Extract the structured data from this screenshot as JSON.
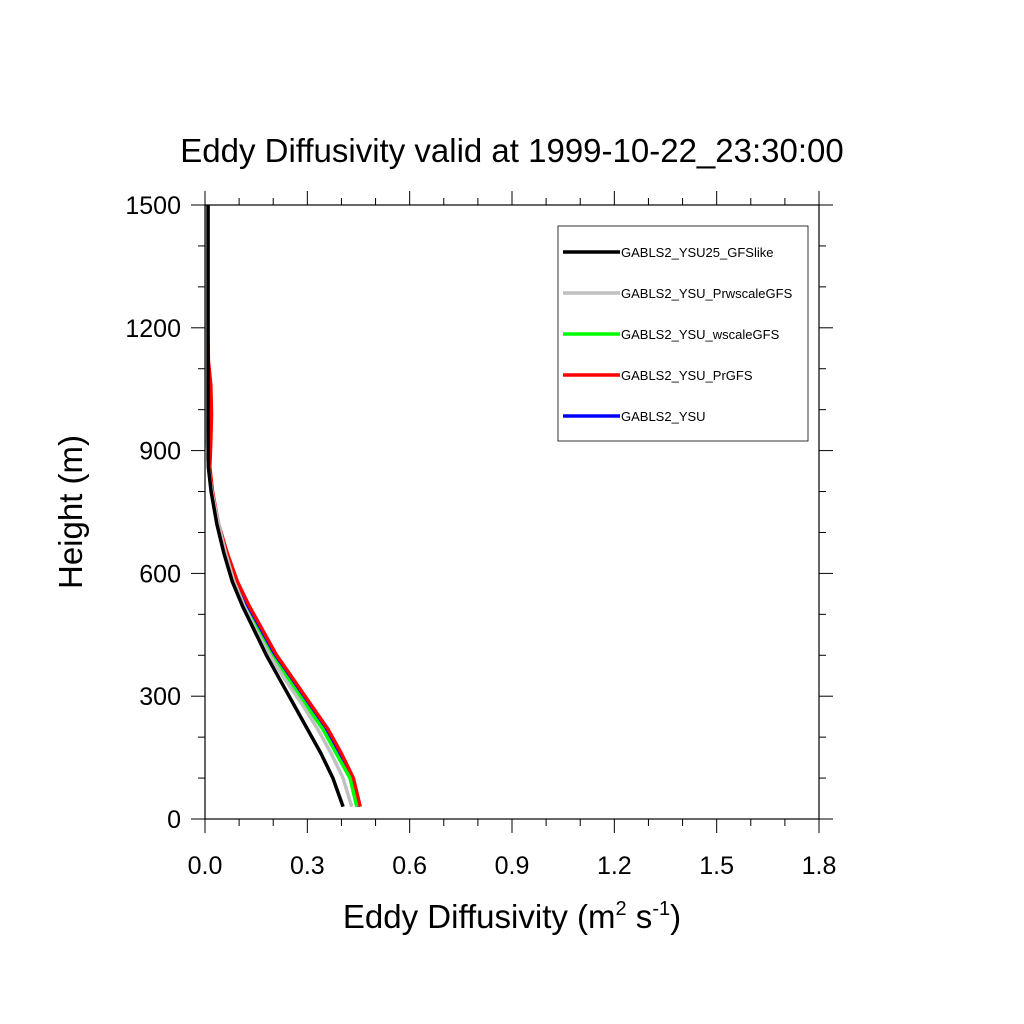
{
  "chart_data": {
    "type": "line",
    "title": "Eddy Diffusivity valid at 1999-10-22_23:30:00",
    "xlabel": {
      "prefix": "Eddy Diffusivity (m",
      "sup1": "2",
      "middle": " s",
      "sup2": "-1",
      "suffix": ")"
    },
    "ylabel": "Height (m)",
    "xlim": [
      0,
      1.8
    ],
    "ylim": [
      0,
      1500
    ],
    "xticks": [
      0,
      0.3,
      0.6,
      0.9,
      1.2,
      1.5,
      1.8
    ],
    "xtick_labels": [
      "0.0",
      "0.3",
      "0.6",
      "0.9",
      "1.2",
      "1.5",
      "1.8"
    ],
    "yticks": [
      0,
      300,
      600,
      900,
      1200,
      1500
    ],
    "ytick_labels": [
      "0",
      "300",
      "600",
      "900",
      "1200",
      "1500"
    ],
    "grid": false,
    "legend_position": "top-right",
    "series": [
      {
        "name": "GABLS2_YSU",
        "color": "#0000ff",
        "x": [
          0.452,
          0.43,
          0.39,
          0.35,
          0.3,
          0.25,
          0.2,
          0.16,
          0.12,
          0.09,
          0.06,
          0.04,
          0.02,
          0.01,
          0.006,
          0.006,
          0.006,
          0.006
        ],
        "y": [
          30,
          100,
          160,
          220,
          280,
          340,
          400,
          460,
          520,
          580,
          650,
          720,
          800,
          860,
          950,
          1100,
          1300,
          1500
        ]
      },
      {
        "name": "GABLS2_YSU_PrGFS",
        "color": "#ff0000",
        "x": [
          0.455,
          0.435,
          0.4,
          0.36,
          0.31,
          0.26,
          0.21,
          0.17,
          0.13,
          0.095,
          0.065,
          0.04,
          0.022,
          0.014,
          0.017,
          0.019,
          0.017,
          0.01,
          0.006,
          0.006
        ],
        "y": [
          30,
          100,
          160,
          220,
          280,
          340,
          400,
          460,
          520,
          580,
          650,
          720,
          800,
          860,
          920,
          990,
          1060,
          1120,
          1300,
          1500
        ]
      },
      {
        "name": "GABLS2_YSU_wscaleGFS",
        "color": "#00ff00",
        "x": [
          0.445,
          0.425,
          0.385,
          0.345,
          0.295,
          0.245,
          0.195,
          0.155,
          0.115,
          0.085,
          0.057,
          0.037,
          0.019,
          0.01,
          0.006,
          0.006,
          0.006,
          0.006
        ],
        "y": [
          30,
          100,
          160,
          220,
          280,
          340,
          400,
          460,
          520,
          580,
          650,
          720,
          800,
          860,
          950,
          1100,
          1300,
          1500
        ]
      },
      {
        "name": "GABLS2_YSU_PrwscaleGFS",
        "color": "#c0c0c0",
        "x": [
          0.43,
          0.405,
          0.37,
          0.33,
          0.285,
          0.235,
          0.19,
          0.15,
          0.115,
          0.085,
          0.06,
          0.04,
          0.02,
          0.01,
          0.006,
          0.006,
          0.006,
          0.006
        ],
        "y": [
          30,
          100,
          160,
          220,
          280,
          340,
          400,
          460,
          520,
          580,
          650,
          720,
          800,
          860,
          950,
          1100,
          1300,
          1500
        ]
      },
      {
        "name": "GABLS2_YSU25_GFSlike",
        "color": "#000000",
        "x": [
          0.405,
          0.375,
          0.34,
          0.3,
          0.26,
          0.22,
          0.18,
          0.145,
          0.11,
          0.08,
          0.055,
          0.035,
          0.018,
          0.01,
          0.009,
          0.009,
          0.009,
          0.009
        ],
        "y": [
          30,
          100,
          160,
          220,
          280,
          340,
          400,
          460,
          520,
          580,
          650,
          720,
          800,
          860,
          950,
          1100,
          1300,
          1500
        ]
      }
    ],
    "legend_order": [
      "GABLS2_YSU25_GFSlike",
      "GABLS2_YSU_PrwscaleGFS",
      "GABLS2_YSU_wscaleGFS",
      "GABLS2_YSU_PrGFS",
      "GABLS2_YSU"
    ]
  }
}
